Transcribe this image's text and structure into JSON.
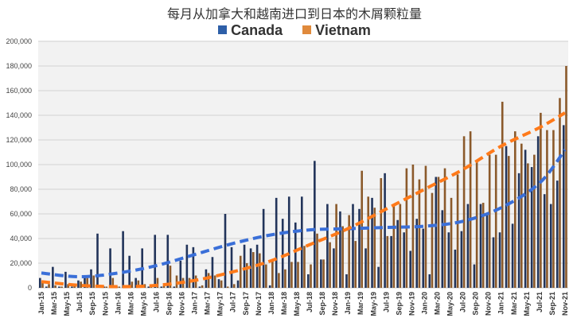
{
  "chart_data": {
    "type": "bar",
    "title": "每月从加拿大和越南进口到日本的木屑颗粒量",
    "xlabel": "",
    "ylabel": "",
    "ylim": [
      0,
      200000
    ],
    "yticks": [
      "0",
      "20,000",
      "40,000",
      "60,000",
      "80,000",
      "100,000",
      "120,000",
      "140,000",
      "160,000",
      "180,000",
      "200,000"
    ],
    "grid": true,
    "legend_position": "top",
    "categories": [
      "Jan-15",
      "Feb-15",
      "Mar-15",
      "Apr-15",
      "May-15",
      "Jun-15",
      "Jul-15",
      "Aug-15",
      "Sep-15",
      "Oct-15",
      "Nov-15",
      "Dec-15",
      "Jan-16",
      "Feb-16",
      "Mar-16",
      "Apr-16",
      "May-16",
      "Jun-16",
      "Jul-16",
      "Aug-16",
      "Sep-16",
      "Oct-16",
      "Nov-16",
      "Dec-16",
      "Jan-17",
      "Feb-17",
      "Mar-17",
      "Apr-17",
      "May-17",
      "Jun-17",
      "Jul-17",
      "Aug-17",
      "Sep-17",
      "Oct-17",
      "Nov-17",
      "Dec-17",
      "Jan-18",
      "Feb-18",
      "Mar-18",
      "Apr-18",
      "May-18",
      "Jun-18",
      "Jul-18",
      "Aug-18",
      "Sep-18",
      "Oct-18",
      "Nov-18",
      "Dec-18",
      "Jan-19",
      "Feb-19",
      "Mar-19",
      "Apr-19",
      "May-19",
      "Jun-19",
      "Jul-19",
      "Aug-19",
      "Sep-19",
      "Oct-19",
      "Nov-19",
      "Dec-19",
      "Jan-20",
      "Feb-20",
      "Mar-20",
      "Apr-20",
      "May-20",
      "Jun-20",
      "Jul-20",
      "Aug-20",
      "Sep-20",
      "Oct-20",
      "Nov-20",
      "Dec-20",
      "Jan-21",
      "Feb-21",
      "Mar-21",
      "Apr-21",
      "May-21",
      "Jun-21",
      "Jul-21",
      "Aug-21",
      "Sep-21",
      "Oct-21",
      "Nov-21"
    ],
    "series": [
      {
        "name": "Canada",
        "color": "#22345a",
        "legend_color": "#2e5fa8",
        "values": [
          8000,
          1000,
          17000,
          1000,
          13000,
          1000,
          6000,
          8000,
          15000,
          44000,
          1000,
          32000,
          1000,
          46000,
          26000,
          8000,
          32000,
          1000,
          43000,
          1000,
          43000,
          1000,
          22000,
          35000,
          33000,
          1000,
          15000,
          25000,
          7000,
          60000,
          33000,
          6000,
          35000,
          32000,
          35000,
          64000,
          2000,
          73000,
          56000,
          74000,
          53000,
          74000,
          11000,
          103000,
          23000,
          68000,
          32000,
          62000,
          11000,
          68000,
          64000,
          32000,
          73000,
          17000,
          93000,
          42000,
          55000,
          45000,
          30000,
          56000,
          48000,
          11000,
          90000,
          63000,
          45000,
          31000,
          46000,
          68000,
          19000,
          68000,
          59000,
          41000,
          45000,
          115000,
          52000,
          93000,
          112000,
          98000,
          123000,
          76000,
          68000,
          87000,
          132000
        ],
        "trend": {
          "Jan-15": 12000,
          "Jul-15": 9000,
          "Jan-16": 12000,
          "Jul-16": 18000,
          "Jan-17": 27000,
          "Jul-17": 36000,
          "Jan-18": 43000,
          "Jul-18": 47000,
          "Jan-19": 48000,
          "Jul-19": 49000,
          "Jan-20": 50000,
          "Jul-20": 54000,
          "Jan-21": 65000,
          "Jul-21": 85000,
          "Nov-21": 112000
        }
      },
      {
        "name": "Vietnam",
        "color": "#8b5a2b",
        "legend_color": "#e08a3c",
        "values": [
          5000,
          3000,
          2000,
          1000,
          3000,
          2000,
          5000,
          8000,
          10000,
          2000,
          1000,
          8000,
          1000,
          2000,
          5000,
          6000,
          3000,
          2000,
          8000,
          2000,
          18000,
          10000,
          8000,
          8000,
          10000,
          2000,
          12000,
          10000,
          6000,
          1000,
          3000,
          26000,
          20000,
          29000,
          28000,
          19000,
          23000,
          12000,
          15000,
          21000,
          21000,
          34000,
          19000,
          44000,
          23000,
          37000,
          68000,
          50000,
          59000,
          38000,
          95000,
          74000,
          65000,
          89000,
          42000,
          68000,
          68000,
          97000,
          100000,
          88000,
          99000,
          77000,
          90000,
          97000,
          73000,
          92000,
          123000,
          127000,
          103000,
          69000,
          108000,
          108000,
          151000,
          107000,
          127000,
          117000,
          101000,
          108000,
          142000,
          128000,
          128000,
          154000,
          180000
        ],
        "trend": {
          "Jan-15": 5000,
          "Jul-15": 2000,
          "Jan-16": 1000,
          "Jul-16": 2000,
          "Jan-17": 6000,
          "Jul-17": 13000,
          "Jan-18": 22000,
          "Jul-18": 35000,
          "Jan-19": 48000,
          "Jul-19": 64000,
          "Jan-20": 80000,
          "Jul-20": 96000,
          "Jan-21": 115000,
          "Jul-21": 130000,
          "Nov-21": 142000
        }
      }
    ]
  }
}
